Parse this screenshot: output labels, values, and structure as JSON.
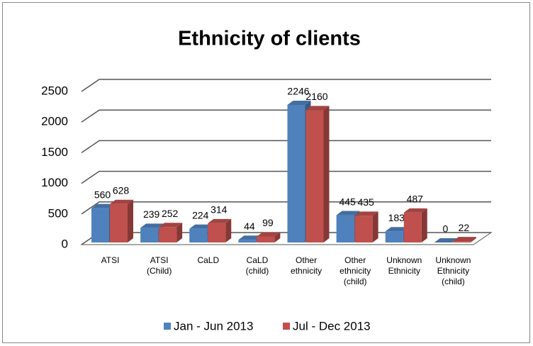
{
  "chart_data": {
    "type": "bar3d",
    "title": "Ethnicity of clients",
    "categories": [
      "ATSI",
      "ATSI (Child)",
      "CaLD",
      "CaLD (child)",
      "Other ethnicity",
      "Other ethnicity (child)",
      "Unknown Ethnicity",
      "Unknown Ethnicity (child)"
    ],
    "series": [
      {
        "name": "Jan - Jun 2013",
        "color": "#4f81bd",
        "values": [
          560,
          239,
          224,
          44,
          2246,
          445,
          183,
          0
        ]
      },
      {
        "name": "Jul - Dec  2013",
        "color": "#c0504d",
        "values": [
          628,
          252,
          314,
          99,
          2160,
          435,
          487,
          22
        ]
      }
    ],
    "ylim": [
      0,
      2500
    ],
    "yticks": [
      0,
      500,
      1000,
      1500,
      2000,
      2500
    ],
    "grid": true,
    "legend": "bottom"
  }
}
